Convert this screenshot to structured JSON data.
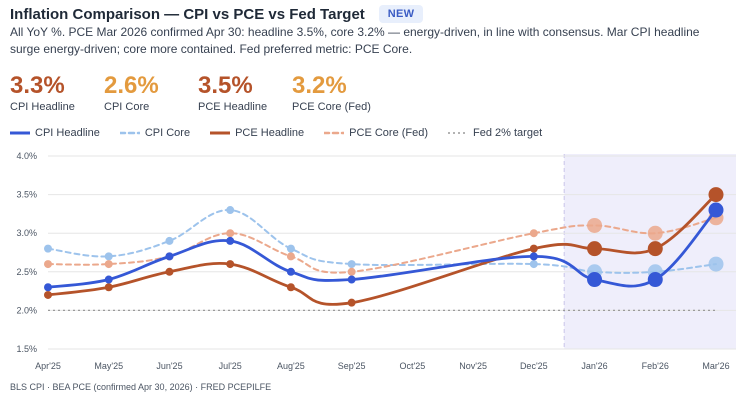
{
  "header": {
    "title": "Inflation Comparison — CPI vs PCE vs Fed Target",
    "badge": "NEW",
    "description": "All YoY %. PCE Mar 2026 confirmed Apr 30: headline 3.5%, core 3.2% — energy-driven, in line with consensus. Mar CPI headline surge energy-driven; core more contained. Fed preferred metric: PCE Core."
  },
  "kpis": [
    {
      "value": "3.3%",
      "label": "CPI Headline",
      "color": "#b5532a"
    },
    {
      "value": "2.6%",
      "label": "CPI Core",
      "color": "#e39a3e"
    },
    {
      "value": "3.5%",
      "label": "PCE Headline",
      "color": "#b5532a"
    },
    {
      "value": "3.2%",
      "label": "PCE Core (Fed)",
      "color": "#e39a3e"
    }
  ],
  "legend": [
    {
      "label": "CPI Headline",
      "color": "#3558d6",
      "style": "solid"
    },
    {
      "label": "CPI Core",
      "color": "#9dc3ec",
      "style": "dashed"
    },
    {
      "label": "PCE Headline",
      "color": "#b5532a",
      "style": "solid"
    },
    {
      "label": "PCE Core (Fed)",
      "color": "#eba88c",
      "style": "dashed"
    },
    {
      "label": "Fed 2% target",
      "color": "#9a9a9a",
      "style": "dotted"
    }
  ],
  "footer": "BLS CPI · BEA PCE (confirmed Apr 30, 2026) · FRED PCEPILFE",
  "chart_data": {
    "type": "line",
    "categories": [
      "Apr'25",
      "May'25",
      "Jun'25",
      "Jul'25",
      "Aug'25",
      "Sep'25",
      "Oct'25",
      "Nov'25",
      "Dec'25",
      "Jan'26",
      "Feb'26",
      "Mar'26"
    ],
    "ylim": [
      1.5,
      4.0
    ],
    "yticks": [
      1.5,
      2.0,
      2.5,
      3.0,
      3.5,
      4.0
    ],
    "ytick_labels": [
      "1.5%",
      "2.0%",
      "2.5%",
      "3.0%",
      "3.5%",
      "4.0%"
    ],
    "grid": true,
    "highlight_range": [
      "Jan'26",
      "Mar'26"
    ],
    "target": {
      "value": 2.0,
      "color": "#9a9a9a"
    },
    "series": [
      {
        "name": "CPI Core",
        "color": "#9dc3ec",
        "style": "dashed",
        "values": [
          2.8,
          2.7,
          2.9,
          3.3,
          2.8,
          2.6,
          null,
          null,
          2.6,
          2.5,
          2.5,
          2.6
        ]
      },
      {
        "name": "PCE Core (Fed)",
        "color": "#eba88c",
        "style": "dashed",
        "values": [
          2.6,
          2.6,
          2.7,
          3.0,
          2.7,
          2.5,
          null,
          null,
          3.0,
          3.1,
          3.0,
          3.2
        ]
      },
      {
        "name": "PCE Headline",
        "color": "#b5532a",
        "style": "solid",
        "values": [
          2.2,
          2.3,
          2.5,
          2.6,
          2.3,
          2.1,
          null,
          null,
          2.8,
          2.8,
          2.8,
          3.5
        ]
      },
      {
        "name": "CPI Headline",
        "color": "#3558d6",
        "style": "solid",
        "values": [
          2.3,
          2.4,
          2.7,
          2.9,
          2.5,
          2.4,
          null,
          null,
          2.7,
          2.4,
          2.4,
          3.3
        ]
      }
    ]
  }
}
